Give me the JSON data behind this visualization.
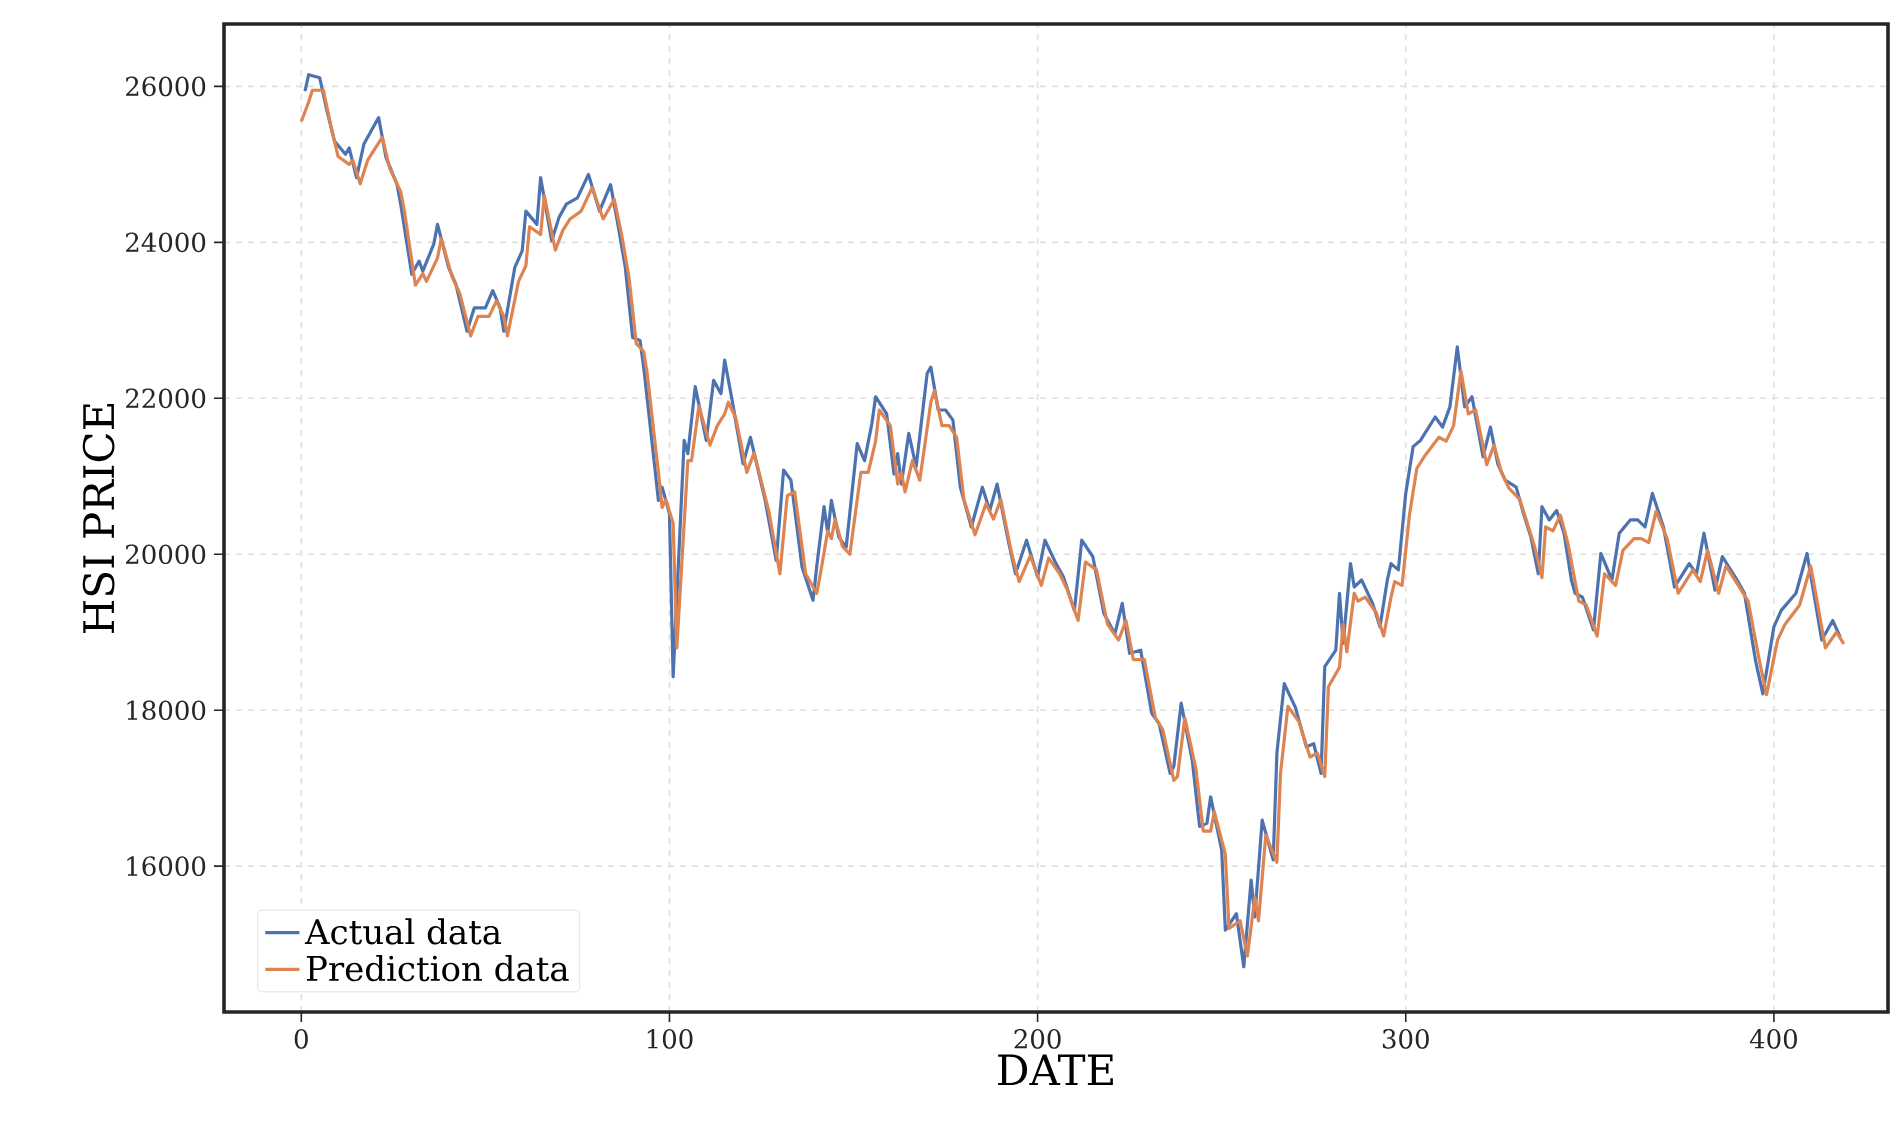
{
  "chart_data": {
    "type": "line",
    "xlabel": "DATE",
    "ylabel": "HSI PRICE",
    "xlim": [
      -21,
      431
    ],
    "ylim": [
      14130,
      26800
    ],
    "xticks": [
      0,
      100,
      200,
      300,
      400
    ],
    "yticks": [
      16000,
      18000,
      20000,
      22000,
      24000,
      26000
    ],
    "grid": true,
    "legend": "bottom left",
    "line_style": "solid",
    "marker": "none",
    "series": [
      {
        "name": "Actual data",
        "color": "#4c72b0",
        "x": [
          1,
          2,
          5,
          7,
          9,
          12,
          13,
          15,
          17,
          21,
          23,
          26,
          27,
          30,
          32,
          33,
          36,
          37,
          40,
          42,
          45,
          47,
          50,
          52,
          54,
          55,
          58,
          60,
          61,
          64,
          65,
          68,
          70,
          72,
          75,
          78,
          81,
          84,
          86,
          88,
          90,
          92,
          93,
          96,
          97,
          98,
          100,
          101,
          104,
          105,
          107,
          110,
          112,
          114,
          115,
          117,
          120,
          122,
          126,
          129,
          131,
          133,
          136,
          139,
          140,
          142,
          143,
          144,
          146,
          148,
          151,
          153,
          155,
          156,
          159,
          161,
          162,
          163,
          165,
          167,
          170,
          171,
          173,
          175,
          177,
          179,
          182,
          185,
          187,
          189,
          192,
          194,
          197,
          200,
          202,
          205,
          207,
          210,
          212,
          215,
          218,
          221,
          223,
          225,
          228,
          231,
          233,
          236,
          237,
          239,
          242,
          244,
          246,
          247,
          250,
          251,
          254,
          256,
          258,
          259,
          261,
          264,
          265,
          267,
          270,
          273,
          275,
          277,
          278,
          281,
          282,
          283,
          285,
          286,
          288,
          291,
          293,
          295,
          296,
          298,
          300,
          302,
          304,
          308,
          310,
          312,
          314,
          316,
          318,
          321,
          323,
          325,
          327,
          330,
          332,
          334,
          336,
          337,
          339,
          341,
          343,
          345,
          346,
          348,
          351,
          353,
          356,
          358,
          361,
          363,
          365,
          367,
          370,
          373,
          377,
          379,
          381,
          384,
          386,
          390,
          392,
          395,
          397,
          400,
          402,
          406,
          409,
          413,
          416,
          418
        ],
        "values": [
          25940,
          26150,
          26110,
          25680,
          25300,
          25130,
          25210,
          24830,
          25260,
          25600,
          25090,
          24740,
          24490,
          23590,
          23760,
          23630,
          23980,
          24230,
          23680,
          23460,
          22860,
          23160,
          23160,
          23380,
          23160,
          22860,
          23680,
          23890,
          24400,
          24230,
          24830,
          24020,
          24320,
          24490,
          24570,
          24870,
          24400,
          24740,
          24230,
          23680,
          22780,
          22740,
          22400,
          21120,
          20690,
          20860,
          20520,
          18430,
          21460,
          21290,
          22150,
          21460,
          22230,
          22060,
          22490,
          21980,
          21160,
          21500,
          20690,
          19920,
          21080,
          20950,
          19840,
          19410,
          19840,
          20610,
          20270,
          20690,
          20220,
          20090,
          21420,
          21200,
          21680,
          22020,
          21800,
          21030,
          21290,
          20900,
          21550,
          21120,
          22320,
          22400,
          21850,
          21850,
          21720,
          20860,
          20350,
          20860,
          20560,
          20900,
          20180,
          19750,
          20180,
          19710,
          20180,
          19880,
          19710,
          19280,
          20180,
          19970,
          19240,
          18980,
          19370,
          18730,
          18770,
          17960,
          17830,
          17190,
          17280,
          18090,
          17360,
          16510,
          16550,
          16890,
          16210,
          15180,
          15390,
          14710,
          15820,
          15350,
          16590,
          16080,
          17450,
          18340,
          18040,
          17530,
          17570,
          17190,
          18560,
          18770,
          19500,
          18860,
          19880,
          19580,
          19670,
          19370,
          19070,
          19670,
          19880,
          19800,
          20780,
          21380,
          21460,
          21760,
          21630,
          21890,
          22660,
          21890,
          22020,
          21250,
          21630,
          21160,
          20950,
          20860,
          20520,
          20220,
          19750,
          20610,
          20440,
          20560,
          20270,
          19670,
          19500,
          19450,
          19030,
          20010,
          19670,
          20270,
          20440,
          20440,
          20350,
          20780,
          20350,
          19580,
          19880,
          19750,
          20270,
          19540,
          19970,
          19670,
          19500,
          18640,
          18210,
          19070,
          19280,
          19500,
          20010,
          18900,
          19150,
          18940
        ]
      },
      {
        "name": "Prediction data",
        "color": "#dd8452",
        "x": [
          0,
          2,
          3,
          6,
          8,
          10,
          13,
          14,
          16,
          18,
          22,
          24,
          27,
          28,
          31,
          33,
          34,
          37,
          38,
          41,
          43,
          46,
          48,
          51,
          53,
          55,
          56,
          59,
          61,
          62,
          65,
          66,
          69,
          71,
          73,
          76,
          79,
          82,
          85,
          87,
          89,
          91,
          93,
          94,
          97,
          98,
          99,
          101,
          102,
          105,
          106,
          108,
          111,
          113,
          115,
          116,
          118,
          121,
          123,
          127,
          130,
          132,
          134,
          137,
          140,
          141,
          143,
          144,
          145,
          147,
          149,
          152,
          154,
          156,
          157,
          160,
          162,
          163,
          164,
          166,
          168,
          171,
          172,
          174,
          176,
          178,
          180,
          183,
          186,
          188,
          190,
          193,
          195,
          198,
          201,
          203,
          206,
          208,
          211,
          213,
          216,
          219,
          222,
          224,
          226,
          229,
          232,
          234,
          237,
          238,
          240,
          243,
          245,
          247,
          248,
          251,
          252,
          255,
          257,
          259,
          260,
          262,
          265,
          266,
          268,
          271,
          274,
          276,
          278,
          279,
          282,
          283,
          284,
          286,
          287,
          289,
          292,
          294,
          296,
          297,
          299,
          301,
          303,
          305,
          309,
          311,
          313,
          315,
          317,
          319,
          322,
          324,
          326,
          328,
          331,
          333,
          335,
          337,
          338,
          340,
          342,
          344,
          346,
          347,
          349,
          352,
          354,
          357,
          359,
          362,
          364,
          366,
          368,
          371,
          374,
          378,
          380,
          382,
          385,
          387,
          391,
          393,
          396,
          398,
          401,
          403,
          407,
          410,
          414,
          417,
          419
        ],
        "values": [
          25550,
          25800,
          25950,
          25950,
          25500,
          25100,
          25000,
          25050,
          24750,
          25050,
          25350,
          24950,
          24650,
          24400,
          23450,
          23600,
          23500,
          23800,
          24050,
          23550,
          23350,
          22800,
          23050,
          23050,
          23250,
          23050,
          22800,
          23500,
          23700,
          24200,
          24100,
          24600,
          23900,
          24150,
          24300,
          24400,
          24700,
          24300,
          24550,
          24100,
          23550,
          22700,
          22600,
          22300,
          21050,
          20600,
          20700,
          20400,
          18800,
          21200,
          21200,
          21900,
          21400,
          21650,
          21800,
          21950,
          21750,
          21050,
          21300,
          20550,
          19750,
          20750,
          20800,
          19750,
          19500,
          19750,
          20300,
          20200,
          20450,
          20100,
          20000,
          21050,
          21050,
          21450,
          21850,
          21650,
          20900,
          21050,
          20800,
          21200,
          20950,
          21950,
          22100,
          21650,
          21650,
          21500,
          20700,
          20250,
          20650,
          20450,
          20700,
          20000,
          19650,
          19980,
          19600,
          19950,
          19750,
          19550,
          19150,
          19900,
          19800,
          19100,
          18900,
          19150,
          18650,
          18650,
          17900,
          17750,
          17100,
          17150,
          17900,
          17250,
          16450,
          16450,
          16700,
          16150,
          15200,
          15300,
          14850,
          15600,
          15300,
          16400,
          16050,
          17200,
          18050,
          17850,
          17400,
          17450,
          17150,
          18300,
          18550,
          19100,
          18750,
          19500,
          19400,
          19450,
          19250,
          18950,
          19450,
          19650,
          19600,
          20500,
          21100,
          21250,
          21500,
          21450,
          21650,
          22350,
          21800,
          21850,
          21150,
          21400,
          21050,
          20850,
          20700,
          20400,
          20100,
          19700,
          20350,
          20300,
          20500,
          20150,
          19650,
          19400,
          19350,
          18950,
          19750,
          19600,
          20050,
          20200,
          20200,
          20150,
          20550,
          20200,
          19500,
          19800,
          19650,
          20050,
          19500,
          19850,
          19550,
          19400,
          18650,
          18200,
          18900,
          19100,
          19350,
          19850,
          18800,
          19000,
          18850
        ]
      }
    ]
  }
}
